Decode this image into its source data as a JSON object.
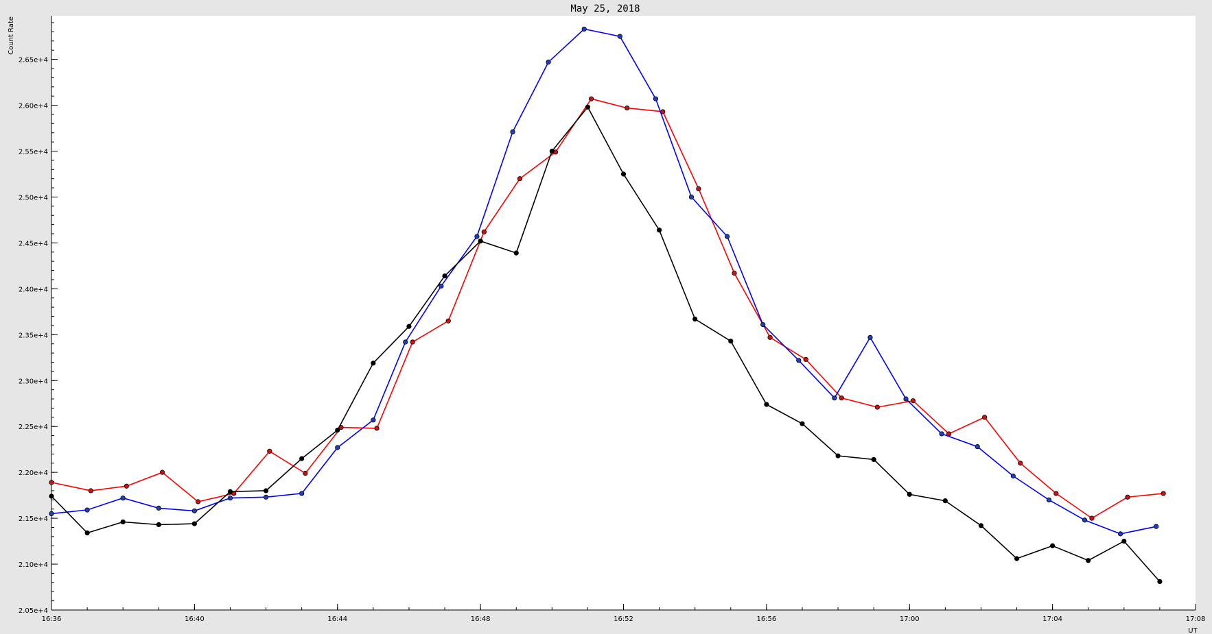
{
  "chart_data": {
    "type": "line",
    "title": "May 25, 2018",
    "ylabel": "Count Rate",
    "xlabel": "UT",
    "ylim": [
      20500,
      26975
    ],
    "xlim_minutes": [
      0,
      32
    ],
    "x_ticks": [
      {
        "m": 0,
        "label": "16:36"
      },
      {
        "m": 4,
        "label": "16:40"
      },
      {
        "m": 8,
        "label": "16:44"
      },
      {
        "m": 12,
        "label": "16:48"
      },
      {
        "m": 16,
        "label": "16:52"
      },
      {
        "m": 20,
        "label": "16:56"
      },
      {
        "m": 24,
        "label": "17:00"
      },
      {
        "m": 28,
        "label": "17:04"
      },
      {
        "m": 32,
        "label": "17:08"
      }
    ],
    "y_ticks": [
      {
        "v": 20500,
        "label": "2.05e+4"
      },
      {
        "v": 21000,
        "label": "2.10e+4"
      },
      {
        "v": 21500,
        "label": "2.15e+4"
      },
      {
        "v": 22000,
        "label": "2.20e+4"
      },
      {
        "v": 22500,
        "label": "2.25e+4"
      },
      {
        "v": 23000,
        "label": "2.30e+4"
      },
      {
        "v": 23500,
        "label": "2.35e+4"
      },
      {
        "v": 24000,
        "label": "2.40e+4"
      },
      {
        "v": 24500,
        "label": "2.45e+4"
      },
      {
        "v": 25000,
        "label": "2.50e+4"
      },
      {
        "v": 25500,
        "label": "2.55e+4"
      },
      {
        "v": 26000,
        "label": "2.60e+4"
      },
      {
        "v": 26500,
        "label": "2.65e+4"
      }
    ],
    "grid": false,
    "series": [
      {
        "color": "#ff0000",
        "marker_color": "#cc1111",
        "x": [
          0.0,
          1.1,
          2.1,
          3.1,
          4.1,
          5.1,
          6.1,
          7.1,
          8.1,
          9.1,
          10.1,
          11.1,
          12.1,
          13.1,
          14.1,
          15.1,
          16.1,
          17.1,
          18.1,
          19.1,
          20.1,
          21.1,
          22.1,
          23.1,
          24.1,
          25.1,
          26.1,
          27.1,
          28.1,
          29.1,
          30.1,
          31.1
        ],
        "y": [
          21890,
          21800,
          21850,
          22000,
          21680,
          21770,
          22230,
          21990,
          22490,
          22480,
          23420,
          23650,
          24620,
          25200,
          25490,
          26070,
          25970,
          25930,
          25090,
          24170,
          23470,
          23230,
          22810,
          22710,
          22780,
          22420,
          22600,
          22100,
          21770,
          21500,
          21730,
          21770
        ]
      },
      {
        "color": "#0000ff",
        "marker_color": "#1f3fbf",
        "x": [
          0.0,
          1.0,
          2.0,
          3.0,
          4.0,
          5.0,
          6.0,
          7.0,
          8.0,
          9.0,
          9.9,
          10.9,
          11.9,
          12.9,
          13.9,
          14.9,
          15.9,
          16.9,
          17.9,
          18.9,
          19.9,
          20.9,
          21.9,
          22.9,
          23.9,
          24.9,
          25.9,
          26.9,
          27.9,
          28.9,
          29.9,
          30.9
        ],
        "y": [
          21550,
          21590,
          21720,
          21610,
          21580,
          21720,
          21730,
          21770,
          22270,
          22570,
          23420,
          24030,
          24570,
          25710,
          26470,
          26830,
          26750,
          26070,
          25000,
          24570,
          23610,
          23220,
          22810,
          23470,
          22800,
          22420,
          22280,
          21960,
          21700,
          21480,
          21330,
          21410
        ]
      },
      {
        "color": "#000000",
        "marker_color": "#000000",
        "x": [
          0.0,
          1.0,
          2.0,
          3.0,
          4.0,
          5.0,
          6.0,
          7.0,
          8.0,
          9.0,
          10.0,
          11.0,
          12.0,
          13.0,
          14.0,
          15.0,
          16.0,
          17.0,
          18.0,
          19.0,
          20.0,
          21.0,
          22.0,
          23.0,
          24.0,
          25.0,
          26.0,
          27.0,
          28.0,
          29.0,
          30.0,
          31.0
        ],
        "y": [
          21740,
          21340,
          21460,
          21430,
          21440,
          21790,
          21800,
          22150,
          22460,
          23190,
          23590,
          24140,
          24520,
          24390,
          25500,
          25980,
          25250,
          24640,
          23670,
          23430,
          22740,
          22530,
          22180,
          22140,
          21760,
          21690,
          21420,
          21060,
          21200,
          21040,
          21250,
          20810
        ]
      }
    ]
  }
}
